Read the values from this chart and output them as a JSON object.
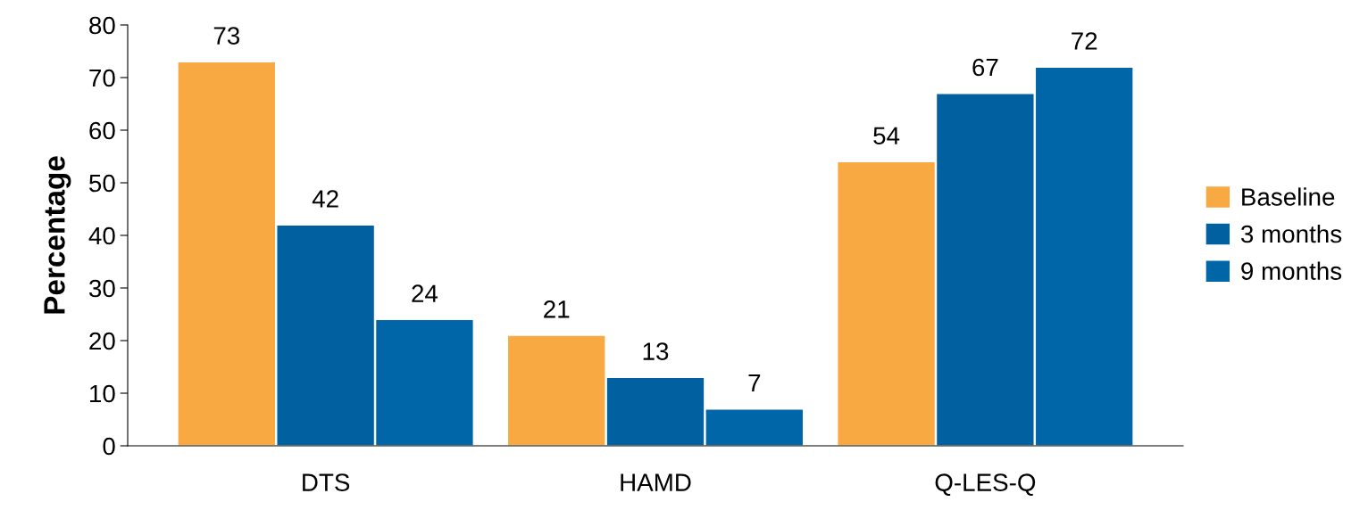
{
  "chart_data": {
    "type": "bar",
    "ylabel": "Percentage",
    "categories": [
      "DTS",
      "HAMD",
      "Q-LES-Q"
    ],
    "series": [
      {
        "name": "Baseline",
        "color": "#f9a942",
        "values": [
          73,
          21,
          54
        ]
      },
      {
        "name": "3 months",
        "color": "#0060a0",
        "values": [
          42,
          13,
          67
        ]
      },
      {
        "name": "9 months",
        "color": "#0066a8",
        "values": [
          24,
          7,
          72
        ]
      }
    ],
    "ylim": [
      0,
      80
    ],
    "yticks": [
      0,
      10,
      20,
      30,
      40,
      50,
      60,
      70,
      80
    ],
    "data_labels": true,
    "grid": false,
    "legend": "right"
  }
}
